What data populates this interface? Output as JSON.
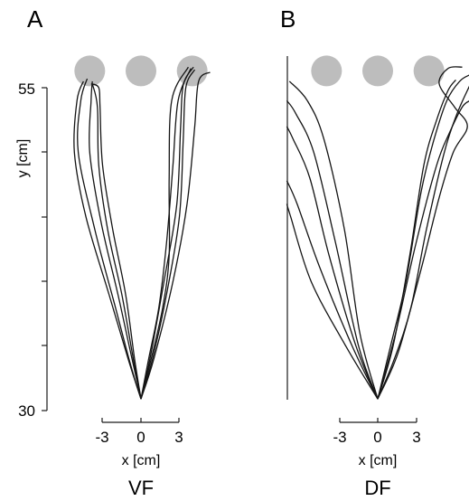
{
  "chart_data": [
    {
      "type": "line",
      "panel": "A",
      "condition": "VF",
      "xlabel": "x [cm]",
      "ylabel": "y [cm]",
      "xticks": [
        "-3",
        "0",
        "3"
      ],
      "yticks": [
        "55",
        "30"
      ],
      "xlim": [
        -4.8,
        4.8
      ],
      "ylim": [
        30,
        57
      ],
      "targets": [
        {
          "x": -4.0,
          "y": 56.3
        },
        {
          "x": 0.0,
          "y": 56.3
        },
        {
          "x": 4.0,
          "y": 56.3
        }
      ],
      "series": [
        {
          "points": [
            [
              0,
              30.9
            ],
            [
              -0.8,
              33.5
            ],
            [
              -2.0,
              38.0
            ],
            [
              -3.6,
              44.0
            ],
            [
              -4.9,
              50.0
            ],
            [
              -4.7,
              54.0
            ],
            [
              -4.2,
              55.7
            ]
          ]
        },
        {
          "points": [
            [
              0,
              30.9
            ],
            [
              -1.0,
              34.0
            ],
            [
              -2.5,
              39.0
            ],
            [
              -4.3,
              45.0
            ],
            [
              -5.2,
              50.0
            ],
            [
              -5.0,
              54.0
            ],
            [
              -4.5,
              55.5
            ]
          ]
        },
        {
          "points": [
            [
              0,
              30.9
            ],
            [
              -0.6,
              34.0
            ],
            [
              -1.5,
              39.0
            ],
            [
              -2.6,
              44.0
            ],
            [
              -3.3,
              49.0
            ],
            [
              -3.4,
              53.5
            ],
            [
              -3.8,
              55.3
            ]
          ]
        },
        {
          "points": [
            [
              0,
              30.9
            ],
            [
              -0.5,
              34.0
            ],
            [
              -1.2,
              39.0
            ],
            [
              -2.2,
              44.0
            ],
            [
              -3.0,
              49.0
            ],
            [
              -3.2,
              53.5
            ],
            [
              -3.3,
              55.0
            ],
            [
              -3.9,
              55.3
            ]
          ]
        },
        {
          "points": [
            [
              0,
              30.9
            ],
            [
              -0.7,
              34.0
            ],
            [
              -1.8,
              39.0
            ],
            [
              -3.1,
              44.5
            ],
            [
              -4.0,
              50.0
            ],
            [
              -3.9,
              54.0
            ],
            [
              -3.8,
              55.5
            ]
          ]
        },
        {
          "points": [
            [
              0,
              30.9
            ],
            [
              0.7,
              34.0
            ],
            [
              1.8,
              40.0
            ],
            [
              2.8,
              46.0
            ],
            [
              3.1,
              52.0
            ],
            [
              3.3,
              55.2
            ],
            [
              4.1,
              56.6
            ]
          ]
        },
        {
          "points": [
            [
              0,
              30.9
            ],
            [
              1.0,
              34.0
            ],
            [
              2.5,
              40.0
            ],
            [
              3.6,
              46.0
            ],
            [
              4.2,
              52.0
            ],
            [
              4.5,
              55.5
            ],
            [
              5.4,
              56.2
            ]
          ]
        },
        {
          "points": [
            [
              0,
              30.9
            ],
            [
              0.9,
              34.0
            ],
            [
              2.0,
              39.0
            ],
            [
              3.0,
              45.0
            ],
            [
              3.3,
              51.0
            ],
            [
              3.5,
              55.0
            ],
            [
              4.2,
              56.4
            ]
          ]
        },
        {
          "points": [
            [
              0,
              30.9
            ],
            [
              0.8,
              34.0
            ],
            [
              1.7,
              38.0
            ],
            [
              2.2,
              42.0
            ],
            [
              2.2,
              48.0
            ],
            [
              2.4,
              54.0
            ],
            [
              3.7,
              56.6
            ]
          ]
        },
        {
          "points": [
            [
              0,
              30.9
            ],
            [
              0.6,
              34.0
            ],
            [
              1.4,
              38.0
            ],
            [
              2.0,
              43.0
            ],
            [
              2.5,
              49.0
            ],
            [
              2.9,
              54.0
            ],
            [
              3.9,
              56.5
            ]
          ]
        }
      ]
    },
    {
      "type": "line",
      "panel": "B",
      "condition": "DF",
      "xlabel": "x [cm]",
      "xticks": [
        "-3",
        "0",
        "3"
      ],
      "xlim": [
        -7.2,
        7.2
      ],
      "ylim": [
        30,
        57
      ],
      "targets": [
        {
          "x": -4.0,
          "y": 56.3
        },
        {
          "x": 0.0,
          "y": 56.3
        },
        {
          "x": 4.0,
          "y": 56.3
        }
      ],
      "series": [
        {
          "points": [
            [
              0,
              30.9
            ],
            [
              -2.5,
              35.0
            ],
            [
              -5.2,
              40.0
            ],
            [
              -6.8,
              45.0
            ],
            [
              -7.1,
              46.0
            ]
          ]
        },
        {
          "points": [
            [
              0,
              30.9
            ],
            [
              -2.0,
              35.0
            ],
            [
              -4.5,
              41.0
            ],
            [
              -6.3,
              46.0
            ],
            [
              -7.1,
              47.8
            ]
          ]
        },
        {
          "points": [
            [
              0,
              30.9
            ],
            [
              -1.7,
              35.0
            ],
            [
              -3.8,
              42.0
            ],
            [
              -5.3,
              48.0
            ],
            [
              -6.6,
              51.0
            ],
            [
              -7.1,
              52.0
            ]
          ]
        },
        {
          "points": [
            [
              0,
              30.9
            ],
            [
              -1.5,
              35.0
            ],
            [
              -3.3,
              43.0
            ],
            [
              -5.0,
              50.0
            ],
            [
              -6.4,
              53.0
            ],
            [
              -7.1,
              54.0
            ]
          ]
        },
        {
          "points": [
            [
              0,
              30.9
            ],
            [
              -1.4,
              36.0
            ],
            [
              -2.6,
              44.0
            ],
            [
              -4.2,
              51.0
            ],
            [
              -5.5,
              54.0
            ],
            [
              -6.9,
              55.5
            ]
          ]
        },
        {
          "points": [
            [
              0,
              30.9
            ],
            [
              1.2,
              35.0
            ],
            [
              2.5,
              42.0
            ],
            [
              3.6,
              49.0
            ],
            [
              4.6,
              52.5
            ],
            [
              5.5,
              54.8
            ],
            [
              6.1,
              55.6
            ]
          ]
        },
        {
          "points": [
            [
              0,
              30.9
            ],
            [
              1.4,
              36.0
            ],
            [
              3.0,
              43.0
            ],
            [
              4.6,
              49.0
            ],
            [
              5.6,
              51.5
            ],
            [
              6.6,
              53.5
            ],
            [
              7.2,
              54.0
            ]
          ]
        },
        {
          "points": [
            [
              0,
              30.9
            ],
            [
              1.0,
              35.0
            ],
            [
              2.2,
              40.0
            ],
            [
              3.4,
              47.0
            ],
            [
              4.4,
              51.0
            ],
            [
              5.4,
              54.0
            ],
            [
              6.4,
              55.5
            ],
            [
              7.2,
              56.0
            ]
          ]
        },
        {
          "points": [
            [
              0,
              30.9
            ],
            [
              1.3,
              34.0
            ],
            [
              2.6,
              38.0
            ],
            [
              3.8,
              44.0
            ],
            [
              5.2,
              50.0
            ],
            [
              6.2,
              53.0
            ],
            [
              7.2,
              55.2
            ]
          ]
        },
        {
          "points": [
            [
              0,
              30.9
            ],
            [
              1.6,
              34.5
            ],
            [
              3.4,
              41.0
            ],
            [
              4.8,
              46.5
            ],
            [
              5.9,
              50.0
            ],
            [
              7.0,
              52.0
            ],
            [
              6.0,
              53.5
            ],
            [
              4.8,
              55.3
            ],
            [
              5.5,
              56.5
            ],
            [
              6.6,
              56.6
            ]
          ]
        }
      ]
    }
  ]
}
